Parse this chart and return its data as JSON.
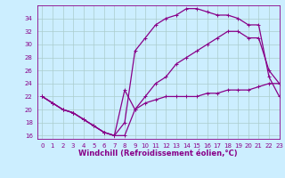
{
  "xlabel": "Windchill (Refroidissement éolien,°C)",
  "background_color": "#cceeff",
  "grid_color": "#aacccc",
  "line_color": "#880088",
  "x": [
    0,
    1,
    2,
    3,
    4,
    5,
    6,
    7,
    8,
    9,
    10,
    11,
    12,
    13,
    14,
    15,
    16,
    17,
    18,
    19,
    20,
    21,
    22,
    23
  ],
  "line1": [
    22,
    21,
    20,
    19.5,
    18.5,
    17.5,
    16.5,
    16,
    16,
    20,
    21,
    21.5,
    22,
    22,
    22,
    22,
    22.5,
    22.5,
    23,
    23,
    23,
    23.5,
    24,
    24
  ],
  "line2": [
    22,
    21,
    20,
    19.5,
    18.5,
    17.5,
    16.5,
    16,
    18,
    29,
    31,
    33,
    34,
    34.5,
    35.5,
    35.5,
    35,
    34.5,
    34.5,
    34,
    33,
    33,
    25,
    22
  ],
  "line3": [
    22,
    21,
    20,
    19.5,
    18.5,
    17.5,
    16.5,
    16,
    23,
    20,
    22,
    24,
    25,
    27,
    28,
    29,
    30,
    31,
    32,
    32,
    31,
    31,
    26,
    24
  ],
  "xlim": [
    -0.5,
    23
  ],
  "ylim": [
    15.5,
    36
  ],
  "xticks": [
    0,
    1,
    2,
    3,
    4,
    5,
    6,
    7,
    8,
    9,
    10,
    11,
    12,
    13,
    14,
    15,
    16,
    17,
    18,
    19,
    20,
    21,
    22,
    23
  ],
  "yticks": [
    16,
    18,
    20,
    22,
    24,
    26,
    28,
    30,
    32,
    34
  ],
  "marker": "+",
  "markersize": 3,
  "linewidth": 0.9,
  "tick_fontsize": 5,
  "label_fontsize": 6
}
